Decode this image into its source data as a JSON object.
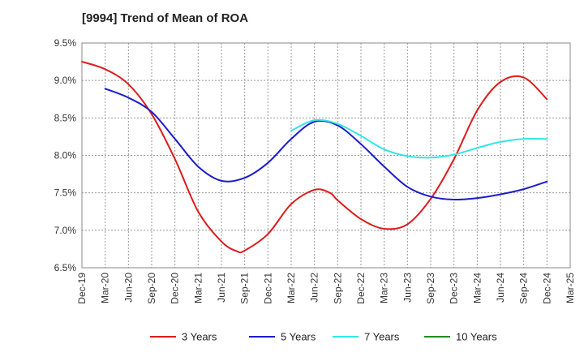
{
  "chart_data": {
    "type": "line",
    "title": "[9994]  Trend of Mean of ROA",
    "xlabel": "",
    "ylabel": "",
    "x_ticks": [
      "Dec-19",
      "Mar-20",
      "Jun-20",
      "Sep-20",
      "Dec-20",
      "Mar-21",
      "Jun-21",
      "Sep-21",
      "Dec-21",
      "Mar-22",
      "Jun-22",
      "Sep-22",
      "Dec-22",
      "Mar-23",
      "Jun-23",
      "Sep-23",
      "Dec-23",
      "Mar-24",
      "Jun-24",
      "Sep-24",
      "Dec-24",
      "Mar-25"
    ],
    "y_ticks": [
      "6.5%",
      "7.0%",
      "7.5%",
      "8.0%",
      "8.5%",
      "9.0%",
      "9.5%"
    ],
    "ylim": [
      6.5,
      9.5
    ],
    "y_unit": "%",
    "grid": true,
    "legend_position": "bottom",
    "series": [
      {
        "name": "3 Years",
        "color": "#dd1c1c",
        "x": [
          "Dec-19",
          "Mar-20",
          "Jun-20",
          "Sep-20",
          "Dec-20",
          "Mar-21",
          "Jun-21",
          "Aug-21",
          "Sep-21",
          "Dec-21",
          "Mar-22",
          "Jun-22",
          "Aug-22",
          "Sep-22",
          "Dec-22",
          "Mar-23",
          "Jun-23",
          "Sep-23",
          "Dec-23",
          "Mar-24",
          "Jun-24",
          "Sep-24",
          "Dec-24"
        ],
        "values": [
          9.25,
          9.15,
          8.95,
          8.55,
          7.95,
          7.25,
          6.85,
          6.72,
          6.73,
          6.95,
          7.35,
          7.54,
          7.5,
          7.4,
          7.15,
          7.02,
          7.08,
          7.42,
          7.95,
          8.6,
          8.98,
          9.04,
          8.75
        ]
      },
      {
        "name": "5 Years",
        "color": "#1c1ccc",
        "x": [
          "Mar-20",
          "Jun-20",
          "Sep-20",
          "Dec-20",
          "Mar-21",
          "Jun-21",
          "Sep-21",
          "Dec-21",
          "Mar-22",
          "Jun-22",
          "Sep-22",
          "Dec-22",
          "Mar-23",
          "Jun-23",
          "Sep-23",
          "Dec-23",
          "Mar-24",
          "Jun-24",
          "Sep-24",
          "Dec-24"
        ],
        "values": [
          8.89,
          8.77,
          8.58,
          8.22,
          7.85,
          7.66,
          7.7,
          7.9,
          8.22,
          8.45,
          8.4,
          8.15,
          7.85,
          7.58,
          7.45,
          7.41,
          7.43,
          7.48,
          7.55,
          7.65
        ]
      },
      {
        "name": "7 Years",
        "color": "#33e6e6",
        "x": [
          "Mar-22",
          "Jun-22",
          "Sep-22",
          "Dec-22",
          "Mar-23",
          "Jun-23",
          "Sep-23",
          "Dec-23",
          "Mar-24",
          "Jun-24",
          "Sep-24",
          "Dec-24"
        ],
        "values": [
          8.33,
          8.47,
          8.42,
          8.26,
          8.08,
          7.99,
          7.97,
          8.01,
          8.1,
          8.18,
          8.22,
          8.22
        ]
      },
      {
        "name": "10 Years",
        "color": "#228b22",
        "x": [],
        "values": []
      }
    ]
  }
}
